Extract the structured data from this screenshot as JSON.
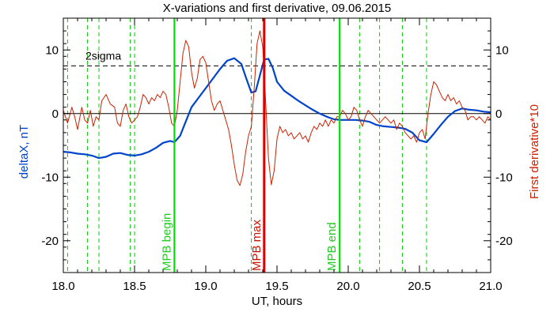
{
  "chart_data": {
    "type": "line",
    "title": "X-variations and first derivative, 09.06.2015",
    "xlabel": "UT, hours",
    "ylabel_left": "deltaX, nT",
    "ylabel_right": "First derivative*10",
    "xlim": [
      18.0,
      21.0
    ],
    "ylim": [
      -25,
      15
    ],
    "x_ticks": [
      18.0,
      18.5,
      19.0,
      19.5,
      20.0,
      20.5,
      21.0
    ],
    "x_tick_labels": [
      "18.0",
      "18.5",
      "19.0",
      "19.5",
      "20.0",
      "20.5",
      "21.0"
    ],
    "y_ticks": [
      -20,
      -10,
      0,
      10
    ],
    "y_tick_labels": [
      "-20",
      "-10",
      "0",
      "10"
    ],
    "y_ticks_right": [
      -20,
      -10,
      0,
      10
    ],
    "y_tick_labels_right": [
      "-20",
      "-10",
      "0",
      "10"
    ],
    "grid": false,
    "colors": {
      "deltaX": "#0044cc",
      "derivative": "#cc2200",
      "markers_green": "#00dd00",
      "marker_red": "#dd0000",
      "label_green": "#22cc22",
      "label_red": "#cc1100",
      "sigma_line": "#000000"
    },
    "threshold": {
      "label": "2sigma",
      "y": 7.5
    },
    "zero_line_y": 0,
    "vertical_lines": [
      {
        "x": 18.78,
        "label": "MPB begin",
        "color": "#00dd00",
        "style": "solid"
      },
      {
        "x": 19.41,
        "label": "MPB max",
        "color": "#dd0000",
        "style": "solid"
      },
      {
        "x": 19.94,
        "label": "MPB end",
        "color": "#00dd00",
        "style": "solid"
      },
      {
        "x": 18.03,
        "style": "dashed",
        "color": "#00cc00"
      },
      {
        "x": 18.17,
        "style": "dashed",
        "color": "#00cc00"
      },
      {
        "x": 18.25,
        "style": "dashed",
        "color": "#00cc00"
      },
      {
        "x": 18.47,
        "style": "dashed",
        "color": "#00cc00"
      },
      {
        "x": 18.5,
        "style": "dashed",
        "color": "#00cc00"
      },
      {
        "x": 19.32,
        "style": "dashed",
        "color": "#00cc00"
      },
      {
        "x": 20.08,
        "style": "dashed",
        "color": "#00cc00"
      },
      {
        "x": 20.22,
        "style": "dashed",
        "color": "#00cc00"
      },
      {
        "x": 20.38,
        "style": "dashed",
        "color": "#00cc00"
      },
      {
        "x": 20.55,
        "style": "dashed",
        "color": "#00cc00"
      }
    ],
    "series": [
      {
        "name": "deltaX",
        "axis": "left",
        "points": [
          [
            18.0,
            -6.0
          ],
          [
            18.05,
            -6.1
          ],
          [
            18.1,
            -6.3
          ],
          [
            18.15,
            -6.4
          ],
          [
            18.2,
            -6.6
          ],
          [
            18.25,
            -7.0
          ],
          [
            18.3,
            -6.8
          ],
          [
            18.35,
            -6.3
          ],
          [
            18.4,
            -6.2
          ],
          [
            18.45,
            -6.5
          ],
          [
            18.5,
            -6.6
          ],
          [
            18.55,
            -6.4
          ],
          [
            18.6,
            -6.0
          ],
          [
            18.65,
            -5.4
          ],
          [
            18.7,
            -4.6
          ],
          [
            18.75,
            -4.3
          ],
          [
            18.78,
            -4.5
          ],
          [
            18.82,
            -3.5
          ],
          [
            18.85,
            -1.8
          ],
          [
            18.9,
            1.0
          ],
          [
            18.95,
            2.5
          ],
          [
            19.0,
            4.0
          ],
          [
            19.05,
            5.5
          ],
          [
            19.1,
            7.0
          ],
          [
            19.15,
            8.3
          ],
          [
            19.2,
            8.7
          ],
          [
            19.25,
            7.8
          ],
          [
            19.28,
            5.8
          ],
          [
            19.32,
            3.3
          ],
          [
            19.35,
            3.5
          ],
          [
            19.38,
            6.0
          ],
          [
            19.41,
            8.5
          ],
          [
            19.44,
            8.6
          ],
          [
            19.47,
            7.2
          ],
          [
            19.5,
            5.0
          ],
          [
            19.55,
            3.6
          ],
          [
            19.6,
            2.8
          ],
          [
            19.65,
            2.0
          ],
          [
            19.7,
            1.3
          ],
          [
            19.75,
            0.6
          ],
          [
            19.8,
            0.0
          ],
          [
            19.85,
            -0.5
          ],
          [
            19.9,
            -0.9
          ],
          [
            19.95,
            -1.0
          ],
          [
            20.0,
            -1.0
          ],
          [
            20.05,
            -1.0
          ],
          [
            20.1,
            -1.1
          ],
          [
            20.15,
            -1.3
          ],
          [
            20.2,
            -1.8
          ],
          [
            20.25,
            -2.0
          ],
          [
            20.3,
            -2.1
          ],
          [
            20.35,
            -2.2
          ],
          [
            20.4,
            -2.4
          ],
          [
            20.45,
            -3.0
          ],
          [
            20.5,
            -4.2
          ],
          [
            20.55,
            -4.5
          ],
          [
            20.6,
            -3.2
          ],
          [
            20.65,
            -1.8
          ],
          [
            20.7,
            -0.5
          ],
          [
            20.75,
            0.4
          ],
          [
            20.8,
            0.8
          ],
          [
            20.85,
            0.6
          ],
          [
            20.9,
            0.5
          ],
          [
            20.95,
            0.3
          ],
          [
            21.0,
            0.2
          ]
        ]
      },
      {
        "name": "First derivative*10",
        "axis": "right",
        "points": [
          [
            18.0,
            0.5
          ],
          [
            18.03,
            -1.5
          ],
          [
            18.06,
            1.0
          ],
          [
            18.08,
            -0.5
          ],
          [
            18.1,
            -2.5
          ],
          [
            18.13,
            1.0
          ],
          [
            18.15,
            -1.0
          ],
          [
            18.17,
            -1.5
          ],
          [
            18.19,
            0.5
          ],
          [
            18.21,
            -2.0
          ],
          [
            18.23,
            -0.5
          ],
          [
            18.25,
            -1.0
          ],
          [
            18.27,
            2.0
          ],
          [
            18.3,
            3.0
          ],
          [
            18.33,
            1.5
          ],
          [
            18.36,
            1.0
          ],
          [
            18.38,
            -1.5
          ],
          [
            18.4,
            -2.0
          ],
          [
            18.42,
            0.5
          ],
          [
            18.44,
            1.5
          ],
          [
            18.46,
            -0.5
          ],
          [
            18.48,
            -1.5
          ],
          [
            18.5,
            -1.0
          ],
          [
            18.52,
            -0.5
          ],
          [
            18.54,
            1.0
          ],
          [
            18.56,
            3.0
          ],
          [
            18.58,
            2.5
          ],
          [
            18.6,
            1.5
          ],
          [
            18.62,
            2.5
          ],
          [
            18.64,
            2.0
          ],
          [
            18.66,
            3.0
          ],
          [
            18.68,
            2.5
          ],
          [
            18.7,
            3.5
          ],
          [
            18.72,
            3.0
          ],
          [
            18.74,
            1.0
          ],
          [
            18.76,
            -1.5
          ],
          [
            18.78,
            -2.0
          ],
          [
            18.8,
            0.5
          ],
          [
            18.82,
            5.0
          ],
          [
            18.84,
            9.5
          ],
          [
            18.86,
            11.5
          ],
          [
            18.88,
            10.5
          ],
          [
            18.9,
            6.5
          ],
          [
            18.92,
            4.0
          ],
          [
            18.94,
            5.5
          ],
          [
            18.96,
            8.5
          ],
          [
            18.98,
            9.0
          ],
          [
            19.0,
            8.0
          ],
          [
            19.02,
            5.0
          ],
          [
            19.04,
            2.0
          ],
          [
            19.06,
            0.5
          ],
          [
            19.08,
            1.5
          ],
          [
            19.1,
            2.0
          ],
          [
            19.12,
            0.5
          ],
          [
            19.14,
            -1.0
          ],
          [
            19.16,
            -2.5
          ],
          [
            19.18,
            -5.0
          ],
          [
            19.2,
            -8.0
          ],
          [
            19.22,
            -10.5
          ],
          [
            19.24,
            -11.3
          ],
          [
            19.26,
            -9.5
          ],
          [
            19.28,
            -6.0
          ],
          [
            19.3,
            -3.5
          ],
          [
            19.32,
            -2.0
          ],
          [
            19.34,
            4.0
          ],
          [
            19.36,
            11.0
          ],
          [
            19.38,
            13.0
          ],
          [
            19.4,
            10.5
          ],
          [
            19.42,
            2.0
          ],
          [
            19.44,
            -7.0
          ],
          [
            19.46,
            -11.2
          ],
          [
            19.48,
            -9.0
          ],
          [
            19.5,
            -4.0
          ],
          [
            19.52,
            -2.0
          ],
          [
            19.54,
            -3.0
          ],
          [
            19.56,
            -2.5
          ],
          [
            19.58,
            -3.5
          ],
          [
            19.6,
            -3.0
          ],
          [
            19.62,
            -4.0
          ],
          [
            19.64,
            -3.5
          ],
          [
            19.66,
            -3.0
          ],
          [
            19.68,
            -4.0
          ],
          [
            19.7,
            -3.5
          ],
          [
            19.72,
            -4.5
          ],
          [
            19.74,
            -3.0
          ],
          [
            19.76,
            -2.0
          ],
          [
            19.78,
            -2.5
          ],
          [
            19.8,
            -1.5
          ],
          [
            19.82,
            -2.0
          ],
          [
            19.84,
            -1.0
          ],
          [
            19.86,
            -2.0
          ],
          [
            19.88,
            -1.0
          ],
          [
            19.9,
            -1.5
          ],
          [
            19.92,
            -0.5
          ],
          [
            19.94,
            -0.5
          ],
          [
            19.96,
            0.5
          ],
          [
            19.98,
            0.0
          ],
          [
            20.0,
            -1.0
          ],
          [
            20.02,
            -0.5
          ],
          [
            20.04,
            1.0
          ],
          [
            20.06,
            0.5
          ],
          [
            20.08,
            -1.0
          ],
          [
            20.1,
            -2.0
          ],
          [
            20.12,
            -0.5
          ],
          [
            20.14,
            0.5
          ],
          [
            20.16,
            0.0
          ],
          [
            20.18,
            -0.5
          ],
          [
            20.2,
            -1.0
          ],
          [
            20.22,
            -1.5
          ],
          [
            20.24,
            -1.0
          ],
          [
            20.26,
            -0.5
          ],
          [
            20.28,
            -1.0
          ],
          [
            20.3,
            -1.5
          ],
          [
            20.32,
            -1.0
          ],
          [
            20.34,
            -2.5
          ],
          [
            20.36,
            -1.5
          ],
          [
            20.38,
            -2.0
          ],
          [
            20.4,
            -3.0
          ],
          [
            20.42,
            -3.5
          ],
          [
            20.44,
            -4.0
          ],
          [
            20.46,
            -3.5
          ],
          [
            20.48,
            -4.5
          ],
          [
            20.5,
            -3.0
          ],
          [
            20.52,
            -2.5
          ],
          [
            20.54,
            -4.0
          ],
          [
            20.56,
            0.0
          ],
          [
            20.58,
            3.0
          ],
          [
            20.6,
            5.0
          ],
          [
            20.62,
            4.5
          ],
          [
            20.64,
            3.5
          ],
          [
            20.66,
            2.5
          ],
          [
            20.68,
            2.0
          ],
          [
            20.7,
            3.0
          ],
          [
            20.72,
            2.0
          ],
          [
            20.74,
            2.5
          ],
          [
            20.76,
            1.5
          ],
          [
            20.78,
            2.0
          ],
          [
            20.8,
            1.0
          ],
          [
            20.82,
            0.5
          ],
          [
            20.84,
            -1.0
          ],
          [
            20.86,
            -0.5
          ],
          [
            20.88,
            -0.5
          ],
          [
            20.9,
            -1.0
          ],
          [
            20.92,
            -0.5
          ],
          [
            20.94,
            -1.0
          ],
          [
            20.96,
            -1.5
          ],
          [
            20.98,
            -0.5
          ],
          [
            21.0,
            -1.0
          ]
        ]
      }
    ]
  }
}
